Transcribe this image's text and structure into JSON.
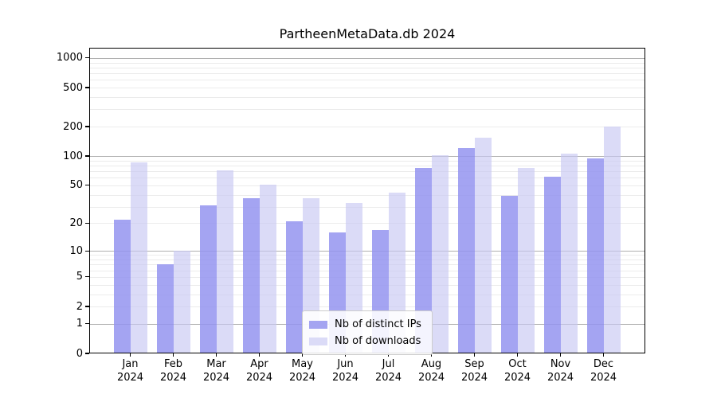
{
  "chart_data": {
    "type": "bar",
    "title": "PartheenMetaData.db 2024",
    "categories": [
      "Jan",
      "Feb",
      "Mar",
      "Apr",
      "May",
      "Jun",
      "Jul",
      "Aug",
      "Sep",
      "Oct",
      "Nov",
      "Dec"
    ],
    "category_year_label": "2024",
    "series": [
      {
        "name": "Nb of distinct IPs",
        "color": "#a4a4f1",
        "bar_rgba": "rgba(148,148,240,0.85)",
        "values": [
          22,
          7,
          31,
          37,
          21,
          16,
          17,
          75,
          120,
          39,
          61,
          95
        ]
      },
      {
        "name": "Nb of downloads",
        "color": "#dbdbf7",
        "bar_rgba": "rgba(200,200,243,0.65)",
        "values": [
          86,
          10,
          72,
          51,
          37,
          33,
          42,
          103,
          155,
          75,
          107,
          200
        ]
      }
    ],
    "ylabel": "",
    "xlabel": "",
    "y_ticks": [
      0,
      1,
      2,
      5,
      10,
      20,
      50,
      100,
      200,
      500,
      1000
    ],
    "y_scale": "log10(value+1)",
    "ylim": [
      0,
      1280
    ],
    "grid": {
      "major_lines": [
        1,
        10,
        100,
        1000
      ],
      "minor_lines": [
        2,
        3,
        4,
        5,
        6,
        7,
        8,
        9,
        20,
        30,
        40,
        50,
        60,
        70,
        80,
        90,
        200,
        300,
        400,
        500,
        600,
        700,
        800,
        900
      ],
      "major_color": "#b0b0b0",
      "minor_color": "#ebebeb"
    },
    "legend_position": "lower center"
  }
}
